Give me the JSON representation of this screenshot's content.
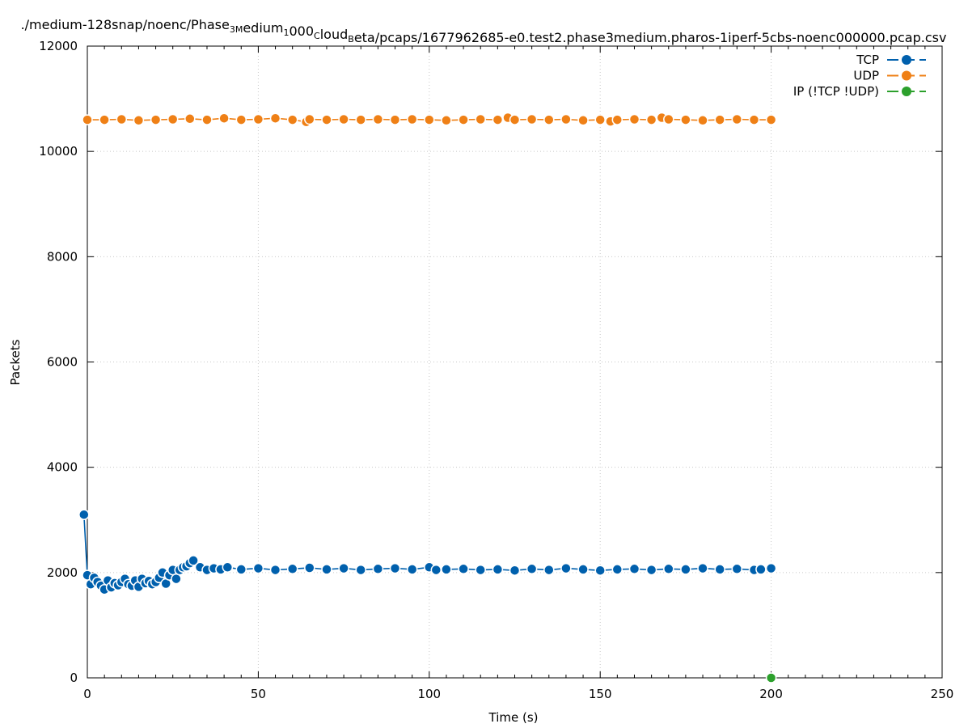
{
  "chart_data": {
    "type": "line",
    "title": "./medium-128snap/noenc/Phase",
    "title_parts": [
      {
        "t": "./medium-128snap/noenc/Phase",
        "sub": false
      },
      {
        "t": "3M",
        "sub": true
      },
      {
        "t": "edium",
        "sub": false
      },
      {
        "t": "1",
        "sub": true
      },
      {
        "t": "000",
        "sub": false
      },
      {
        "t": "C",
        "sub": true
      },
      {
        "t": "loud",
        "sub": false
      },
      {
        "t": "B",
        "sub": true
      },
      {
        "t": "eta/pcaps/1677962685-e0.test2.phase3medium.pharos-1iperf-5cbs-noenc000000.pcap.csv",
        "sub": false
      }
    ],
    "xlabel": "Time (s)",
    "ylabel": "Packets",
    "xlim": [
      0,
      250
    ],
    "ylim": [
      0,
      12000
    ],
    "xticks": [
      0,
      50,
      100,
      150,
      200,
      250
    ],
    "yticks": [
      0,
      2000,
      4000,
      6000,
      8000,
      10000,
      12000
    ],
    "grid": true,
    "legend_position": "top-right",
    "series": [
      {
        "name": "TCP",
        "color": "#0060ad",
        "x": [
          -1,
          0,
          1,
          2,
          3,
          4,
          5,
          6,
          7,
          8,
          9,
          10,
          11,
          12,
          13,
          14,
          15,
          16,
          17,
          18,
          19,
          20,
          21,
          22,
          23,
          24,
          25,
          26,
          27,
          28,
          29,
          30,
          31,
          33,
          35,
          37,
          39,
          41,
          45,
          50,
          55,
          60,
          65,
          70,
          75,
          80,
          85,
          90,
          95,
          100,
          102,
          105,
          110,
          115,
          120,
          125,
          130,
          135,
          140,
          145,
          150,
          155,
          160,
          165,
          170,
          175,
          180,
          185,
          190,
          195,
          197,
          200
        ],
        "y": [
          3100,
          1950,
          1780,
          1900,
          1820,
          1750,
          1680,
          1850,
          1720,
          1800,
          1760,
          1820,
          1880,
          1780,
          1750,
          1850,
          1730,
          1880,
          1800,
          1840,
          1780,
          1820,
          1900,
          2000,
          1790,
          1950,
          2050,
          1880,
          2050,
          2100,
          2120,
          2180,
          2230,
          2100,
          2050,
          2080,
          2060,
          2100,
          2060,
          2080,
          2050,
          2070,
          2090,
          2060,
          2080,
          2050,
          2070,
          2080,
          2060,
          2100,
          2050,
          2060,
          2070,
          2050,
          2060,
          2040,
          2070,
          2050,
          2080,
          2060,
          2040,
          2060,
          2070,
          2050,
          2070,
          2060,
          2080,
          2060,
          2070,
          2050,
          2060,
          2080
        ]
      },
      {
        "name": "UDP",
        "color": "#ef8016",
        "x": [
          0,
          5,
          10,
          15,
          20,
          25,
          30,
          35,
          40,
          45,
          50,
          55,
          60,
          64,
          65,
          70,
          75,
          80,
          85,
          90,
          95,
          100,
          105,
          110,
          115,
          120,
          123,
          125,
          130,
          135,
          140,
          145,
          150,
          153,
          155,
          160,
          165,
          168,
          170,
          175,
          180,
          185,
          190,
          195,
          200
        ],
        "y": [
          10600,
          10600,
          10610,
          10590,
          10600,
          10610,
          10620,
          10600,
          10630,
          10600,
          10610,
          10630,
          10600,
          10560,
          10610,
          10600,
          10610,
          10600,
          10610,
          10600,
          10610,
          10600,
          10590,
          10600,
          10610,
          10600,
          10640,
          10600,
          10610,
          10600,
          10610,
          10590,
          10600,
          10570,
          10600,
          10610,
          10600,
          10640,
          10610,
          10600,
          10590,
          10600,
          10610,
          10600,
          10600
        ]
      },
      {
        "name": "IP (!TCP  !UDP)",
        "color": "#2ca02c",
        "x": [
          200
        ],
        "y": [
          0
        ]
      }
    ]
  }
}
